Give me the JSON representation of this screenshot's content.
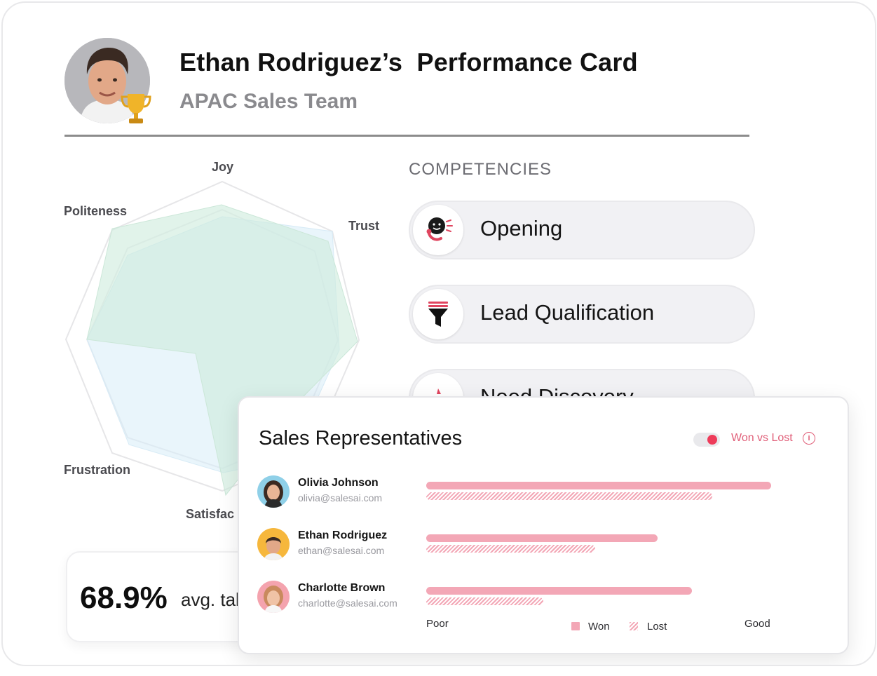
{
  "header": {
    "title": "Ethan Rodriguez’s  Performance Card",
    "subtitle": "APAC Sales Team"
  },
  "radar": {
    "labels": [
      "Joy",
      "Trust",
      "Satisfac",
      "Frustration",
      "Politeness"
    ]
  },
  "competencies": {
    "title": "COMPETENCIES",
    "items": [
      {
        "label": "Opening",
        "icon": "phone-smile-icon"
      },
      {
        "label": "Lead Qualification",
        "icon": "funnel-icon"
      },
      {
        "label": "Need Discovery",
        "icon": "thumb-icon"
      }
    ]
  },
  "stat": {
    "value": "68.9%",
    "label": "avg. tal"
  },
  "sales_panel": {
    "title": "Sales Representatives",
    "toggle_label": "Won vs Lost",
    "info_glyph": "i",
    "axis_min_label": "Poor",
    "axis_max_label": "Good",
    "legend_won": "Won",
    "legend_lost": "Lost",
    "colors": {
      "won": "#f3a7b6",
      "accent": "#ee3c5a"
    },
    "reps": [
      {
        "name": "Olivia Johnson",
        "email": "olivia@salesai.com",
        "won": 1.0,
        "lost": 0.83
      },
      {
        "name": "Ethan Rodriguez",
        "email": "ethan@salesai.com",
        "won": 0.67,
        "lost": 0.49
      },
      {
        "name": "Charlotte Brown",
        "email": "charlotte@salesai.com",
        "won": 0.77,
        "lost": 0.34
      }
    ]
  }
}
